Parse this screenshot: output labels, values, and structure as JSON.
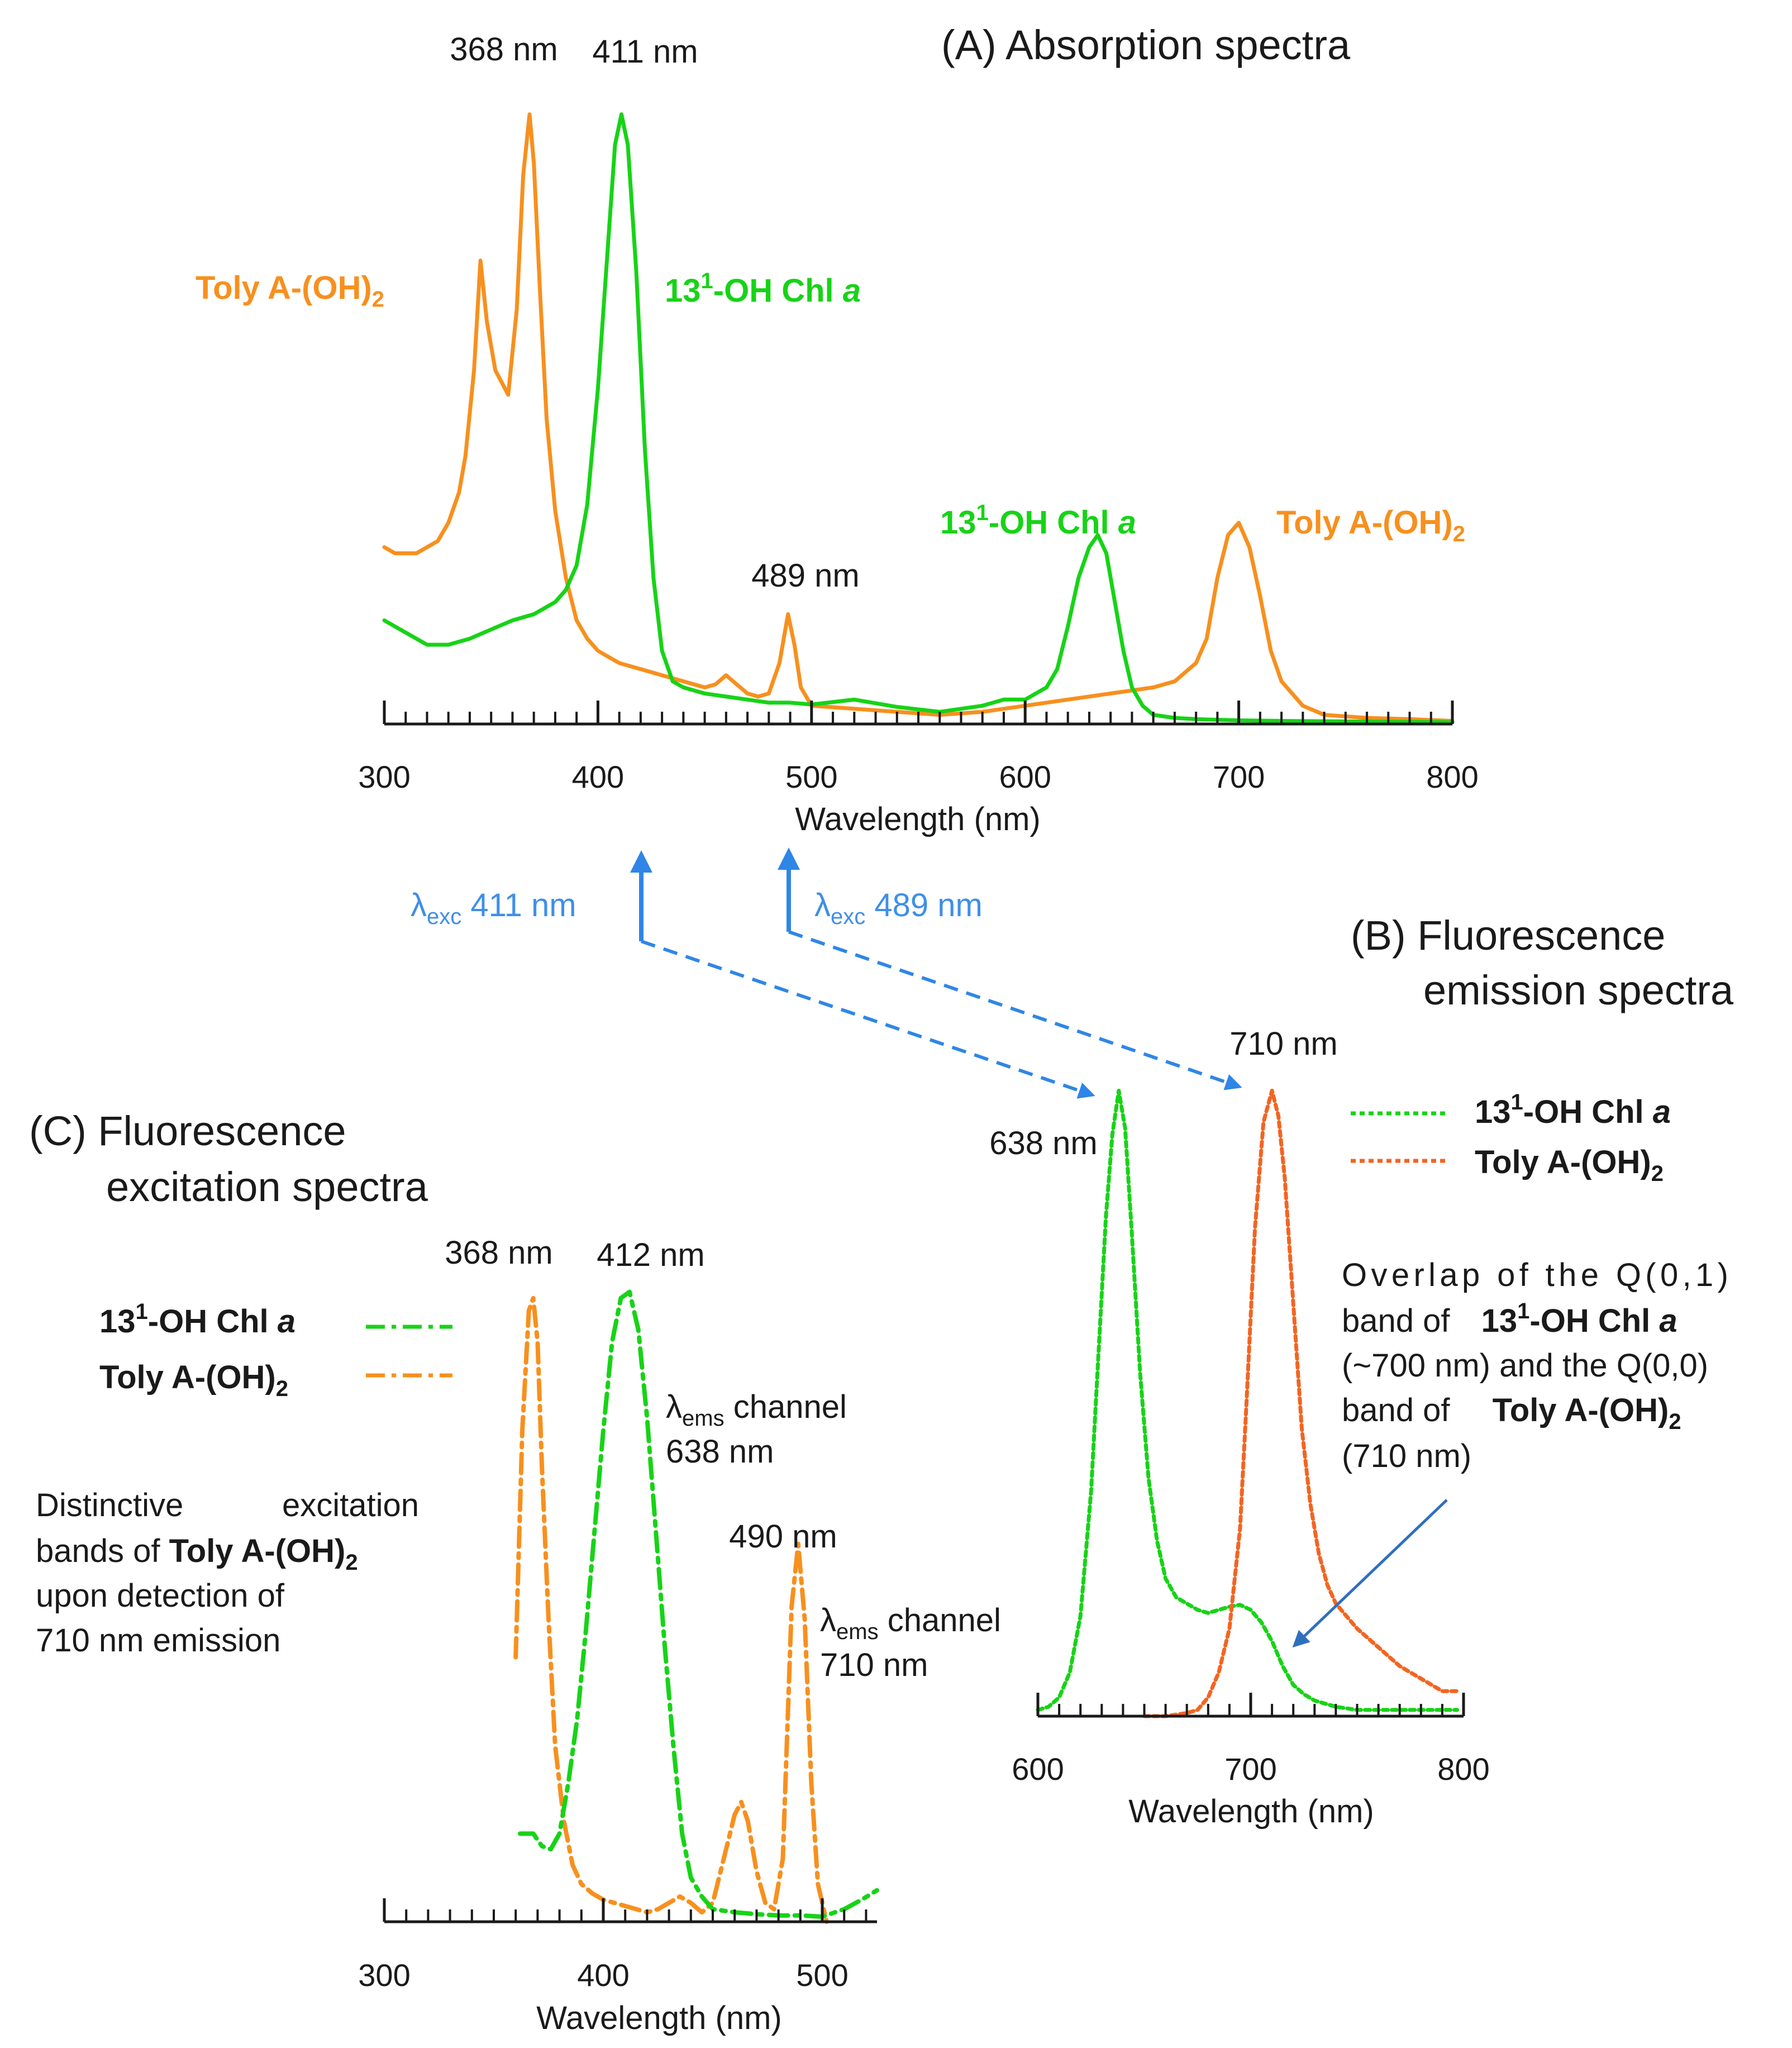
{
  "colors": {
    "chl_green": "#17d317",
    "toly_orange": "#f7901e",
    "toly_emission": "#f26522",
    "arrow_blue": "#2f86e6",
    "label_blue": "#3f8fe8",
    "callout_arrow": "#2f6fbf",
    "axis": "#1a1a1a",
    "text": "#1a1a1a"
  },
  "chart_data": [
    {
      "id": "A",
      "type": "line",
      "title": "(A) Absorption spectra",
      "xlabel": "Wavelength (nm)",
      "ylabel": "",
      "xlim": [
        300,
        800
      ],
      "ylim": [
        0,
        1.05
      ],
      "xticks": [
        300,
        400,
        500,
        600,
        700,
        800
      ],
      "series": [
        {
          "name": "Toly A-(OH)2",
          "label_base": "Toly A-(OH)",
          "label_sub": "2",
          "style": "solid",
          "color": "#f7901e",
          "x": [
            300,
            305,
            310,
            315,
            320,
            325,
            330,
            335,
            338,
            342,
            345,
            348,
            352,
            355,
            358,
            362,
            365,
            368,
            370,
            373,
            376,
            380,
            385,
            390,
            395,
            400,
            410,
            420,
            430,
            440,
            450,
            455,
            460,
            465,
            470,
            475,
            480,
            485,
            489,
            492,
            495,
            500,
            520,
            540,
            560,
            580,
            600,
            620,
            640,
            660,
            670,
            680,
            685,
            690,
            695,
            700,
            705,
            710,
            715,
            720,
            730,
            740,
            760,
            780,
            800
          ],
          "y": [
            0.29,
            0.28,
            0.28,
            0.28,
            0.29,
            0.3,
            0.33,
            0.38,
            0.44,
            0.58,
            0.76,
            0.66,
            0.58,
            0.56,
            0.54,
            0.68,
            0.9,
            1.0,
            0.92,
            0.7,
            0.5,
            0.35,
            0.24,
            0.17,
            0.14,
            0.12,
            0.1,
            0.09,
            0.08,
            0.07,
            0.06,
            0.065,
            0.08,
            0.065,
            0.05,
            0.045,
            0.05,
            0.1,
            0.18,
            0.13,
            0.06,
            0.03,
            0.025,
            0.02,
            0.015,
            0.02,
            0.03,
            0.04,
            0.05,
            0.06,
            0.07,
            0.1,
            0.14,
            0.24,
            0.31,
            0.33,
            0.29,
            0.21,
            0.12,
            0.07,
            0.03,
            0.015,
            0.01,
            0.008,
            0.005
          ]
        },
        {
          "name": "13¹-OH Chl a",
          "label_base": "13",
          "label_sup": "1",
          "label_mid": "-OH Chl ",
          "label_ital": "a",
          "style": "solid",
          "color": "#17d317",
          "x": [
            300,
            310,
            320,
            330,
            340,
            350,
            360,
            370,
            380,
            385,
            390,
            395,
            400,
            405,
            408,
            411,
            414,
            418,
            422,
            426,
            430,
            435,
            440,
            450,
            460,
            470,
            480,
            490,
            500,
            520,
            540,
            560,
            580,
            590,
            600,
            610,
            615,
            620,
            625,
            630,
            634,
            638,
            642,
            646,
            650,
            655,
            660,
            670,
            680,
            700,
            720,
            760,
            800
          ],
          "y": [
            0.17,
            0.15,
            0.13,
            0.13,
            0.14,
            0.155,
            0.17,
            0.18,
            0.2,
            0.22,
            0.26,
            0.36,
            0.55,
            0.8,
            0.95,
            1.0,
            0.95,
            0.74,
            0.45,
            0.24,
            0.12,
            0.07,
            0.06,
            0.05,
            0.045,
            0.04,
            0.035,
            0.035,
            0.032,
            0.04,
            0.028,
            0.02,
            0.03,
            0.04,
            0.04,
            0.06,
            0.09,
            0.16,
            0.24,
            0.29,
            0.31,
            0.28,
            0.2,
            0.12,
            0.06,
            0.03,
            0.015,
            0.01,
            0.008,
            0.006,
            0.005,
            0.004,
            0.003
          ]
        }
      ],
      "annotations": [
        "368 nm",
        "411 nm",
        "489 nm"
      ]
    },
    {
      "id": "B",
      "type": "line",
      "title_lines": [
        "(B) Fluorescence",
        "emission spectra"
      ],
      "xlabel": "Wavelength (nm)",
      "xlim": [
        600,
        800
      ],
      "ylim": [
        0,
        1.02
      ],
      "xticks": [
        600,
        700,
        800
      ],
      "series": [
        {
          "name": "13¹-OH Chl a",
          "style": "dotted",
          "color": "#17d317",
          "x": [
            600,
            605,
            610,
            615,
            620,
            625,
            628,
            632,
            635,
            638,
            641,
            644,
            648,
            652,
            656,
            660,
            665,
            670,
            675,
            680,
            685,
            690,
            695,
            700,
            705,
            710,
            715,
            720,
            725,
            730,
            740,
            750,
            760,
            770,
            780,
            790,
            797
          ],
          "y": [
            0.01,
            0.015,
            0.03,
            0.07,
            0.16,
            0.36,
            0.55,
            0.8,
            0.93,
            1.0,
            0.94,
            0.78,
            0.55,
            0.38,
            0.28,
            0.22,
            0.19,
            0.18,
            0.17,
            0.165,
            0.17,
            0.175,
            0.178,
            0.17,
            0.15,
            0.12,
            0.08,
            0.05,
            0.035,
            0.025,
            0.015,
            0.01,
            0.01,
            0.01,
            0.01,
            0.01,
            0.01
          ]
        },
        {
          "name": "Toly A-(OH)2",
          "style": "dotted",
          "color": "#f26522",
          "x": [
            650,
            660,
            670,
            675,
            680,
            685,
            690,
            695,
            698,
            702,
            706,
            710,
            713,
            716,
            720,
            724,
            728,
            732,
            736,
            740,
            745,
            750,
            760,
            770,
            780,
            790,
            797
          ],
          "y": [
            0.0,
            0.0,
            0.005,
            0.01,
            0.03,
            0.07,
            0.14,
            0.3,
            0.5,
            0.78,
            0.95,
            1.0,
            0.96,
            0.86,
            0.66,
            0.46,
            0.34,
            0.26,
            0.21,
            0.18,
            0.16,
            0.14,
            0.11,
            0.08,
            0.06,
            0.04,
            0.04
          ]
        }
      ],
      "annotations": [
        "638 nm",
        "710 nm"
      ],
      "overlap_note": {
        "line1": "Overlap of the Q(0,1)",
        "line2_pre": "band of ",
        "line2_bold": "13",
        "line2_sup": "1",
        "line2_bold2": "-OH Chl ",
        "line2_ital": "a",
        "line3": "(~700 nm) and the Q(0,0)",
        "line4_pre": "band of ",
        "line4_bold": "Toly A-(OH)",
        "line4_sub": "2",
        "line5": "(710 nm)"
      }
    },
    {
      "id": "C",
      "type": "line",
      "title_lines": [
        "(C) Fluorescence",
        "excitation spectra"
      ],
      "xlabel": "Wavelength (nm)",
      "xlim": [
        300,
        525
      ],
      "ylim": [
        0,
        1.02
      ],
      "xticks": [
        300,
        400,
        500
      ],
      "series": [
        {
          "name": "Toly A-(OH)2",
          "channel": "710 nm",
          "style": "dashdot",
          "color": "#f7901e",
          "x": [
            360,
            363,
            366,
            368,
            370,
            372,
            375,
            378,
            382,
            386,
            390,
            395,
            400,
            410,
            420,
            425,
            430,
            435,
            440,
            445,
            450,
            455,
            460,
            463,
            466,
            470,
            474,
            478,
            482,
            486,
            489,
            492,
            495,
            498,
            502
          ],
          "y": [
            0.42,
            0.78,
            0.97,
            0.99,
            0.92,
            0.72,
            0.48,
            0.28,
            0.16,
            0.09,
            0.06,
            0.045,
            0.035,
            0.025,
            0.015,
            0.02,
            0.03,
            0.04,
            0.03,
            0.015,
            0.03,
            0.1,
            0.17,
            0.19,
            0.16,
            0.08,
            0.03,
            0.02,
            0.1,
            0.5,
            0.6,
            0.48,
            0.22,
            0.06,
            0.0
          ]
        },
        {
          "name": "13¹-OH Chl a",
          "channel": "638 nm",
          "style": "dashdot",
          "color": "#17d317",
          "x": [
            362,
            368,
            372,
            376,
            380,
            384,
            388,
            392,
            396,
            400,
            404,
            408,
            412,
            416,
            420,
            424,
            428,
            432,
            436,
            440,
            445,
            450,
            460,
            470,
            480,
            490,
            500,
            510,
            518,
            525
          ],
          "y": [
            0.14,
            0.14,
            0.12,
            0.115,
            0.14,
            0.22,
            0.32,
            0.46,
            0.62,
            0.78,
            0.92,
            0.99,
            1.0,
            0.94,
            0.8,
            0.62,
            0.44,
            0.28,
            0.14,
            0.07,
            0.04,
            0.02,
            0.015,
            0.012,
            0.01,
            0.01,
            0.008,
            0.02,
            0.035,
            0.05
          ]
        }
      ],
      "annotations": [
        "368 nm",
        "412 nm",
        "490 nm"
      ],
      "channel_labels": [
        {
          "prefix": "λ",
          "sub": "ems",
          "text": " channel",
          "value": "638 nm"
        },
        {
          "prefix": "λ",
          "sub": "ems",
          "text": " channel",
          "value": "710 nm"
        }
      ],
      "distinctive_note": {
        "line1_a": "Distinctive",
        "line1_b": "excitation",
        "line2_pre": "bands of ",
        "line2_bold": "Toly A-(OH)",
        "line2_sub": "2",
        "line3": "upon detection of",
        "line4": "710 nm emission"
      }
    }
  ],
  "legend_A": {
    "chl_base": "13",
    "chl_sup": "1",
    "chl_mid": "-OH Chl ",
    "chl_ital": "a",
    "toly_base": "Toly A-(OH)",
    "toly_sub": "2"
  },
  "excitation_labels": [
    {
      "prefix": "λ",
      "sub": "exc",
      "value": " 411 nm"
    },
    {
      "prefix": "λ",
      "sub": "exc",
      "value": " 489 nm"
    }
  ]
}
